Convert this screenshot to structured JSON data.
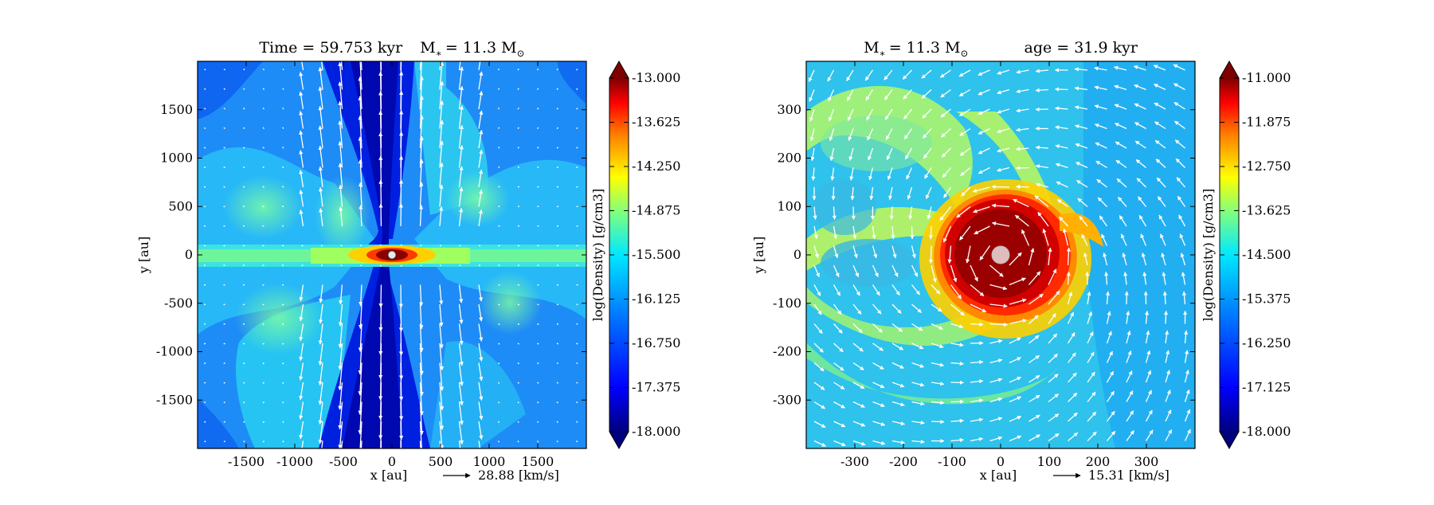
{
  "chart_data": [
    {
      "type": "heatmap",
      "title": "Time = 59.753 kyr    M∗ = 11.3 M⊙",
      "title_parts": {
        "time": "Time = 59.753 kyr",
        "mass": "M",
        "mass_sub": "∗",
        "mass_eq": "= 11.3 M",
        "mass_unit": "⊙"
      },
      "xlabel": "x [au]",
      "ylabel": "y [au]",
      "xlim": [
        -2000,
        2000
      ],
      "ylim": [
        -2000,
        2000
      ],
      "x_ticks": [
        -1500,
        -1000,
        -500,
        0,
        500,
        1000,
        1500
      ],
      "y_ticks": [
        -1500,
        -1000,
        -500,
        0,
        500,
        1000,
        1500
      ],
      "colorbar_label": "log(Density) [g/cm3]",
      "colorbar_range": [
        -18.0,
        -13.0
      ],
      "colorbar_ticks": [
        "-13.000",
        "-13.625",
        "-14.250",
        "-14.875",
        "-15.500",
        "-16.125",
        "-16.750",
        "-17.375",
        "-18.000"
      ],
      "velocity_key": "28.88 [km/s]"
    },
    {
      "type": "heatmap",
      "title": "M∗ = 11.3 M⊙    age = 31.9 kyr",
      "title_parts": {
        "mass": "M",
        "mass_sub": "∗",
        "mass_eq": "= 11.3 M",
        "mass_unit": "⊙",
        "age": "age = 31.9 kyr"
      },
      "xlabel": "x [au]",
      "ylabel": "y [au]",
      "xlim": [
        -400,
        400
      ],
      "ylim": [
        -400,
        400
      ],
      "x_ticks": [
        -300,
        -200,
        -100,
        0,
        100,
        200,
        300
      ],
      "y_ticks": [
        -300,
        -200,
        -100,
        0,
        100,
        200,
        300
      ],
      "colorbar_label": "log(Density) [g/cm3]",
      "colorbar_range": [
        -18.0,
        -11.0
      ],
      "colorbar_ticks": [
        "-11.000",
        "-11.875",
        "-12.750",
        "-13.625",
        "-14.500",
        "-15.375",
        "-16.250",
        "-17.125",
        "-18.000"
      ],
      "velocity_key": "15.31 [km/s]"
    }
  ],
  "colors": {
    "jet": [
      "#00007f",
      "#0000ff",
      "#007fff",
      "#00ffff",
      "#7fff7f",
      "#ffff00",
      "#ff7f00",
      "#ff0000",
      "#7f0000"
    ],
    "arrow": "#ffffff",
    "star": "#e8c4c4"
  }
}
